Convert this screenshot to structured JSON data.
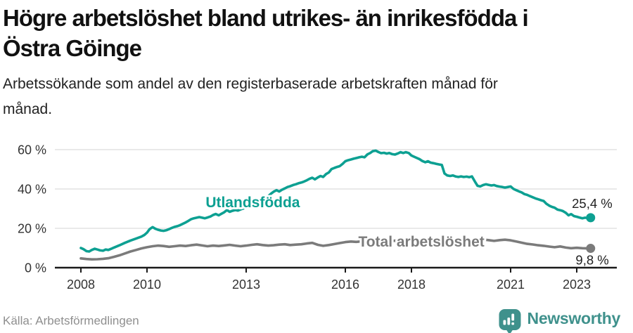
{
  "header": {
    "title_line1": "Högre arbetslöshet bland utrikes- än inrikesfödda i",
    "title_line2": "Östra Göinge",
    "subtitle_line1": "Arbetssökande som andel av den registerbaserade arbetskraften månad för",
    "subtitle_line2": "månad."
  },
  "footer": {
    "source": "Källa: Arbetsförmedlingen",
    "brand_name": "Newsworthy",
    "brand_icon": "newsworthy-speech-bubble-barchart-icon"
  },
  "colors": {
    "accent_teal": "#0da092",
    "line_gray": "#7b7b7b",
    "brand_teal": "#3f918c",
    "grid": "#dcdcdc",
    "axis": "#1a1a1a",
    "tick_label": "#333333",
    "title": "#111111",
    "subtitle": "#222222",
    "source": "#8f8f8f",
    "value_label": "#222222"
  },
  "chart_data": {
    "type": "line",
    "title": "",
    "xlabel": "",
    "ylabel": "%",
    "grid": "horizontal",
    "legend_position": "inline-labels",
    "xlim": [
      2007.2,
      2024.2
    ],
    "ylim": [
      0,
      65
    ],
    "y_ticks": [
      0,
      20,
      40,
      60
    ],
    "y_tick_suffix": " %",
    "x_ticks": [
      2008,
      2010,
      2013,
      2016,
      2018,
      2021,
      2023
    ],
    "series": [
      {
        "name": "Utlandsfödda",
        "color": "#0da092",
        "end_value_label": "25,4 %",
        "end_value": 25.4,
        "label_anchor": [
          2013.2,
          30.7
        ],
        "end_label_offset": [
          31,
          -14
        ],
        "points": [
          [
            2008.0,
            10.0
          ],
          [
            2008.08,
            9.4
          ],
          [
            2008.17,
            8.4
          ],
          [
            2008.25,
            8.2
          ],
          [
            2008.33,
            9.0
          ],
          [
            2008.42,
            9.6
          ],
          [
            2008.5,
            9.2
          ],
          [
            2008.58,
            8.8
          ],
          [
            2008.67,
            8.6
          ],
          [
            2008.75,
            9.2
          ],
          [
            2008.83,
            9.0
          ],
          [
            2008.92,
            9.6
          ],
          [
            2009.0,
            10.2
          ],
          [
            2009.17,
            11.4
          ],
          [
            2009.33,
            12.6
          ],
          [
            2009.5,
            13.8
          ],
          [
            2009.67,
            14.8
          ],
          [
            2009.83,
            15.8
          ],
          [
            2009.92,
            16.6
          ],
          [
            2010.0,
            17.8
          ],
          [
            2010.08,
            19.6
          ],
          [
            2010.17,
            20.6
          ],
          [
            2010.25,
            19.8
          ],
          [
            2010.33,
            19.3
          ],
          [
            2010.42,
            18.9
          ],
          [
            2010.5,
            18.7
          ],
          [
            2010.58,
            19.0
          ],
          [
            2010.67,
            19.6
          ],
          [
            2010.75,
            20.2
          ],
          [
            2010.83,
            20.7
          ],
          [
            2010.92,
            21.1
          ],
          [
            2011.0,
            21.6
          ],
          [
            2011.08,
            22.3
          ],
          [
            2011.17,
            23.0
          ],
          [
            2011.25,
            23.8
          ],
          [
            2011.33,
            24.6
          ],
          [
            2011.42,
            25.1
          ],
          [
            2011.5,
            25.4
          ],
          [
            2011.58,
            25.7
          ],
          [
            2011.67,
            25.4
          ],
          [
            2011.75,
            25.1
          ],
          [
            2011.83,
            25.5
          ],
          [
            2011.92,
            26.0
          ],
          [
            2012.0,
            26.8
          ],
          [
            2012.08,
            27.3
          ],
          [
            2012.17,
            26.6
          ],
          [
            2012.25,
            27.4
          ],
          [
            2012.33,
            28.1
          ],
          [
            2012.42,
            29.3
          ],
          [
            2012.5,
            28.4
          ],
          [
            2012.58,
            28.9
          ],
          [
            2012.67,
            29.3
          ],
          [
            2012.75,
            29.0
          ],
          [
            2012.83,
            29.6
          ],
          [
            2012.92,
            30.1
          ],
          [
            2013.0,
            30.7
          ],
          [
            2013.17,
            31.8
          ],
          [
            2013.33,
            33.0
          ],
          [
            2013.5,
            34.6
          ],
          [
            2013.67,
            36.4
          ],
          [
            2013.75,
            37.6
          ],
          [
            2013.83,
            38.6
          ],
          [
            2013.92,
            39.4
          ],
          [
            2014.0,
            38.7
          ],
          [
            2014.08,
            39.6
          ],
          [
            2014.17,
            40.3
          ],
          [
            2014.25,
            41.0
          ],
          [
            2014.33,
            41.4
          ],
          [
            2014.42,
            42.0
          ],
          [
            2014.5,
            42.4
          ],
          [
            2014.58,
            42.9
          ],
          [
            2014.67,
            43.3
          ],
          [
            2014.75,
            43.8
          ],
          [
            2014.83,
            44.4
          ],
          [
            2014.92,
            45.2
          ],
          [
            2015.0,
            45.7
          ],
          [
            2015.08,
            44.9
          ],
          [
            2015.17,
            45.9
          ],
          [
            2015.25,
            46.6
          ],
          [
            2015.33,
            46.1
          ],
          [
            2015.42,
            47.6
          ],
          [
            2015.5,
            48.4
          ],
          [
            2015.58,
            50.1
          ],
          [
            2015.67,
            50.7
          ],
          [
            2015.75,
            51.2
          ],
          [
            2015.83,
            51.6
          ],
          [
            2015.92,
            52.8
          ],
          [
            2016.0,
            54.1
          ],
          [
            2016.08,
            54.6
          ],
          [
            2016.17,
            55.0
          ],
          [
            2016.25,
            55.4
          ],
          [
            2016.33,
            55.7
          ],
          [
            2016.42,
            56.1
          ],
          [
            2016.5,
            56.4
          ],
          [
            2016.58,
            56.1
          ],
          [
            2016.67,
            57.6
          ],
          [
            2016.75,
            58.3
          ],
          [
            2016.83,
            59.2
          ],
          [
            2016.92,
            59.5
          ],
          [
            2017.0,
            58.8
          ],
          [
            2017.08,
            58.2
          ],
          [
            2017.17,
            58.4
          ],
          [
            2017.25,
            58.0
          ],
          [
            2017.33,
            58.3
          ],
          [
            2017.42,
            57.7
          ],
          [
            2017.5,
            57.5
          ],
          [
            2017.58,
            58.0
          ],
          [
            2017.67,
            58.7
          ],
          [
            2017.75,
            58.3
          ],
          [
            2017.83,
            58.7
          ],
          [
            2017.92,
            58.3
          ],
          [
            2018.0,
            57.0
          ],
          [
            2018.08,
            56.4
          ],
          [
            2018.17,
            55.7
          ],
          [
            2018.25,
            55.1
          ],
          [
            2018.33,
            54.2
          ],
          [
            2018.42,
            53.6
          ],
          [
            2018.5,
            54.1
          ],
          [
            2018.58,
            53.4
          ],
          [
            2018.67,
            53.1
          ],
          [
            2018.75,
            52.8
          ],
          [
            2018.83,
            52.5
          ],
          [
            2018.92,
            52.2
          ],
          [
            2019.0,
            47.9
          ],
          [
            2019.08,
            46.9
          ],
          [
            2019.17,
            46.6
          ],
          [
            2019.25,
            46.9
          ],
          [
            2019.33,
            46.4
          ],
          [
            2019.42,
            46.1
          ],
          [
            2019.5,
            46.4
          ],
          [
            2019.58,
            46.1
          ],
          [
            2019.67,
            46.3
          ],
          [
            2019.75,
            46.0
          ],
          [
            2019.83,
            46.4
          ],
          [
            2019.92,
            43.8
          ],
          [
            2020.0,
            41.6
          ],
          [
            2020.08,
            41.3
          ],
          [
            2020.17,
            42.0
          ],
          [
            2020.25,
            42.4
          ],
          [
            2020.33,
            42.1
          ],
          [
            2020.42,
            41.8
          ],
          [
            2020.5,
            42.0
          ],
          [
            2020.58,
            41.5
          ],
          [
            2020.67,
            41.2
          ],
          [
            2020.75,
            41.0
          ],
          [
            2020.83,
            40.7
          ],
          [
            2020.92,
            41.0
          ],
          [
            2021.0,
            41.3
          ],
          [
            2021.08,
            40.1
          ],
          [
            2021.17,
            39.4
          ],
          [
            2021.25,
            38.8
          ],
          [
            2021.33,
            38.3
          ],
          [
            2021.42,
            37.4
          ],
          [
            2021.5,
            37.0
          ],
          [
            2021.58,
            36.4
          ],
          [
            2021.67,
            35.8
          ],
          [
            2021.75,
            35.2
          ],
          [
            2021.83,
            34.8
          ],
          [
            2021.92,
            34.3
          ],
          [
            2022.0,
            33.9
          ],
          [
            2022.08,
            32.5
          ],
          [
            2022.17,
            31.5
          ],
          [
            2022.25,
            30.9
          ],
          [
            2022.33,
            30.5
          ],
          [
            2022.42,
            29.5
          ],
          [
            2022.5,
            29.2
          ],
          [
            2022.58,
            28.8
          ],
          [
            2022.67,
            27.9
          ],
          [
            2022.75,
            26.6
          ],
          [
            2022.83,
            27.2
          ],
          [
            2022.92,
            26.2
          ],
          [
            2023.0,
            25.9
          ],
          [
            2023.08,
            25.5
          ],
          [
            2023.17,
            25.1
          ],
          [
            2023.25,
            25.4
          ],
          [
            2023.33,
            25.2
          ],
          [
            2023.42,
            25.4
          ]
        ]
      },
      {
        "name": "Total arbetslöshet",
        "color": "#7b7b7b",
        "end_value_label": "9,8 %",
        "end_value": 9.8,
        "label_anchor": [
          2018.3,
          10.7
        ],
        "end_label_offset": [
          26,
          23
        ],
        "points": [
          [
            2008.0,
            4.7
          ],
          [
            2008.17,
            4.4
          ],
          [
            2008.33,
            4.2
          ],
          [
            2008.5,
            4.3
          ],
          [
            2008.67,
            4.5
          ],
          [
            2008.83,
            4.8
          ],
          [
            2009.0,
            5.5
          ],
          [
            2009.17,
            6.3
          ],
          [
            2009.33,
            7.2
          ],
          [
            2009.5,
            8.2
          ],
          [
            2009.67,
            9.0
          ],
          [
            2009.83,
            9.8
          ],
          [
            2010.0,
            10.4
          ],
          [
            2010.17,
            10.9
          ],
          [
            2010.33,
            11.2
          ],
          [
            2010.5,
            11.0
          ],
          [
            2010.67,
            10.6
          ],
          [
            2010.83,
            10.9
          ],
          [
            2011.0,
            11.2
          ],
          [
            2011.17,
            11.0
          ],
          [
            2011.33,
            11.4
          ],
          [
            2011.5,
            11.7
          ],
          [
            2011.67,
            11.3
          ],
          [
            2011.83,
            10.9
          ],
          [
            2012.0,
            11.2
          ],
          [
            2012.17,
            11.0
          ],
          [
            2012.33,
            11.3
          ],
          [
            2012.5,
            11.6
          ],
          [
            2012.67,
            11.2
          ],
          [
            2012.83,
            10.9
          ],
          [
            2013.0,
            11.2
          ],
          [
            2013.17,
            11.6
          ],
          [
            2013.33,
            11.9
          ],
          [
            2013.5,
            11.5
          ],
          [
            2013.67,
            11.2
          ],
          [
            2013.83,
            11.4
          ],
          [
            2014.0,
            11.7
          ],
          [
            2014.17,
            11.9
          ],
          [
            2014.33,
            11.5
          ],
          [
            2014.5,
            11.7
          ],
          [
            2014.67,
            11.9
          ],
          [
            2014.83,
            12.3
          ],
          [
            2015.0,
            12.6
          ],
          [
            2015.17,
            11.6
          ],
          [
            2015.33,
            11.1
          ],
          [
            2015.5,
            11.5
          ],
          [
            2015.67,
            12.0
          ],
          [
            2015.83,
            12.5
          ],
          [
            2016.0,
            13.0
          ],
          [
            2016.17,
            13.3
          ],
          [
            2016.33,
            13.1
          ],
          [
            2016.5,
            13.4
          ],
          [
            2016.67,
            13.2
          ],
          [
            2016.83,
            13.5
          ],
          [
            2017.0,
            13.3
          ],
          [
            2017.17,
            13.6
          ],
          [
            2017.33,
            13.4
          ],
          [
            2017.5,
            13.7
          ],
          [
            2017.67,
            13.5
          ],
          [
            2017.83,
            13.8
          ],
          [
            2018.0,
            13.6
          ],
          [
            2018.17,
            13.9
          ],
          [
            2018.33,
            13.6
          ],
          [
            2018.5,
            13.4
          ],
          [
            2018.67,
            13.7
          ],
          [
            2018.83,
            13.4
          ],
          [
            2019.0,
            13.6
          ],
          [
            2019.17,
            13.3
          ],
          [
            2019.33,
            13.6
          ],
          [
            2019.5,
            13.8
          ],
          [
            2019.67,
            13.5
          ],
          [
            2019.83,
            13.7
          ],
          [
            2020.0,
            13.9
          ],
          [
            2020.17,
            14.3
          ],
          [
            2020.33,
            14.0
          ],
          [
            2020.5,
            13.6
          ],
          [
            2020.67,
            14.0
          ],
          [
            2020.83,
            14.2
          ],
          [
            2021.0,
            13.9
          ],
          [
            2021.17,
            13.3
          ],
          [
            2021.33,
            12.7
          ],
          [
            2021.5,
            12.1
          ],
          [
            2021.67,
            11.8
          ],
          [
            2021.83,
            11.4
          ],
          [
            2022.0,
            11.1
          ],
          [
            2022.17,
            10.7
          ],
          [
            2022.33,
            10.4
          ],
          [
            2022.5,
            10.8
          ],
          [
            2022.67,
            10.2
          ],
          [
            2022.83,
            9.9
          ],
          [
            2023.0,
            10.1
          ],
          [
            2023.17,
            9.9
          ],
          [
            2023.33,
            9.8
          ],
          [
            2023.42,
            9.8
          ]
        ]
      }
    ]
  }
}
